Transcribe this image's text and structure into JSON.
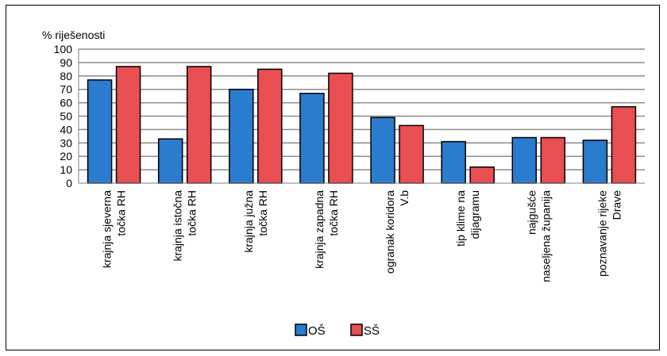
{
  "chart_data": {
    "type": "bar",
    "ylabel": "% riješenosti",
    "ylim": [
      0,
      100
    ],
    "ytick_step": 10,
    "grid": true,
    "legend_position": "bottom",
    "categories": [
      [
        "krajnja sjeverna",
        "točka RH"
      ],
      [
        "krajnja istočna",
        "točka RH"
      ],
      [
        "krajnja južna",
        "točka RH"
      ],
      [
        "krajnja zapadna",
        "točka RH"
      ],
      [
        "ogranak koridora",
        "V.b"
      ],
      [
        "tip klime na",
        "dijagramu"
      ],
      [
        "najgušće",
        "naseljena županija"
      ],
      [
        "poznavanje rijeke",
        "Drave"
      ]
    ],
    "series": [
      {
        "name": "OŠ",
        "color": "#2b7bcf",
        "values": [
          77,
          33,
          70,
          67,
          49,
          31,
          34,
          32
        ]
      },
      {
        "name": "SŠ",
        "color": "#e84e52",
        "values": [
          87,
          87,
          85,
          82,
          43,
          12,
          34,
          57
        ]
      }
    ]
  }
}
